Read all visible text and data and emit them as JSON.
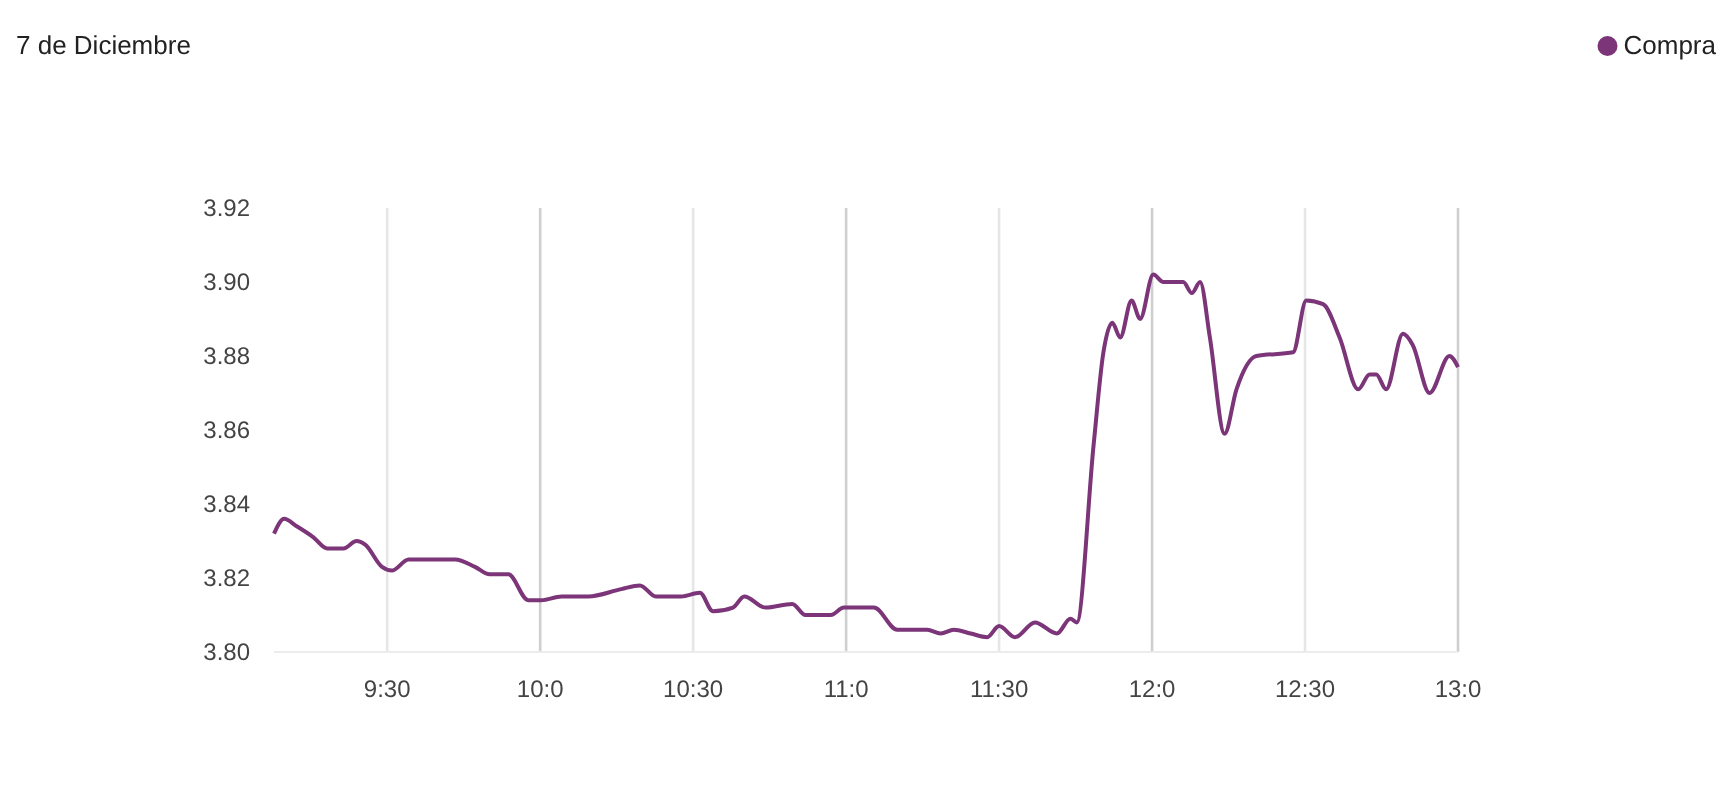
{
  "chart_data": {
    "type": "line",
    "title": "7 de Diciembre",
    "xlim": [
      9.13,
      13.0
    ],
    "xticks": [
      {
        "value": 9.5,
        "label": "9:30"
      },
      {
        "value": 10,
        "label": "10:0"
      },
      {
        "value": 10.5,
        "label": "10:30"
      },
      {
        "value": 11,
        "label": "11:0"
      },
      {
        "value": 11.5,
        "label": "11:30"
      },
      {
        "value": 12,
        "label": "12:0"
      },
      {
        "value": 12.5,
        "label": "12:30"
      },
      {
        "value": 13,
        "label": "13:0"
      }
    ],
    "ylim": [
      3.8,
      3.92
    ],
    "yticks": [
      {
        "value": 3.8,
        "label": "3.80"
      },
      {
        "value": 3.82,
        "label": "3.82"
      },
      {
        "value": 3.84,
        "label": "3.84"
      },
      {
        "value": 3.86,
        "label": "3.86"
      },
      {
        "value": 3.88,
        "label": "3.88"
      },
      {
        "value": 3.9,
        "label": "3.90"
      },
      {
        "value": 3.92,
        "label": "3.92"
      }
    ],
    "grid": "x",
    "legend": "top right",
    "marker": "none",
    "line_style": "solid",
    "series": [
      {
        "name": "Compra",
        "color": "#7b3578",
        "x": [
          9.13,
          9.163,
          9.204,
          9.259,
          9.304,
          9.357,
          9.4,
          9.428,
          9.483,
          9.515,
          9.57,
          9.722,
          9.787,
          9.835,
          9.874,
          9.896,
          9.961,
          10.004,
          10.07,
          10.157,
          10.265,
          10.326,
          10.378,
          10.461,
          10.522,
          10.565,
          10.63,
          10.667,
          10.737,
          10.824,
          10.867,
          10.95,
          10.993,
          11.048,
          11.091,
          11.167,
          11.265,
          11.309,
          11.352,
          11.407,
          11.461,
          11.5,
          11.552,
          11.617,
          11.689,
          11.733,
          11.754,
          11.809,
          11.841,
          11.87,
          11.896,
          11.933,
          11.961,
          12.004,
          12.037,
          12.102,
          12.13,
          12.157,
          12.189,
          12.237,
          12.276,
          12.341,
          12.461,
          12.504,
          12.559,
          12.613,
          12.674,
          12.711,
          12.733,
          12.765,
          12.82,
          12.852,
          12.907,
          12.972,
          13.0
        ],
        "values": [
          3.832,
          3.836,
          3.834,
          3.831,
          3.828,
          3.828,
          3.83,
          3.829,
          3.823,
          3.822,
          3.825,
          3.825,
          3.823,
          3.821,
          3.821,
          3.821,
          3.814,
          3.814,
          3.815,
          3.815,
          3.817,
          3.818,
          3.815,
          3.815,
          3.816,
          3.811,
          3.812,
          3.815,
          3.812,
          3.813,
          3.81,
          3.81,
          3.812,
          3.812,
          3.812,
          3.806,
          3.806,
          3.805,
          3.806,
          3.805,
          3.804,
          3.807,
          3.804,
          3.808,
          3.805,
          3.809,
          3.808,
          3.856,
          3.881,
          3.889,
          3.885,
          3.895,
          3.89,
          3.902,
          3.9,
          3.9,
          3.897,
          3.9,
          3.885,
          3.859,
          3.871,
          3.88,
          3.881,
          3.895,
          3.894,
          3.885,
          3.871,
          3.875,
          3.875,
          3.871,
          3.886,
          3.883,
          3.87,
          3.88,
          3.877
        ]
      }
    ]
  }
}
